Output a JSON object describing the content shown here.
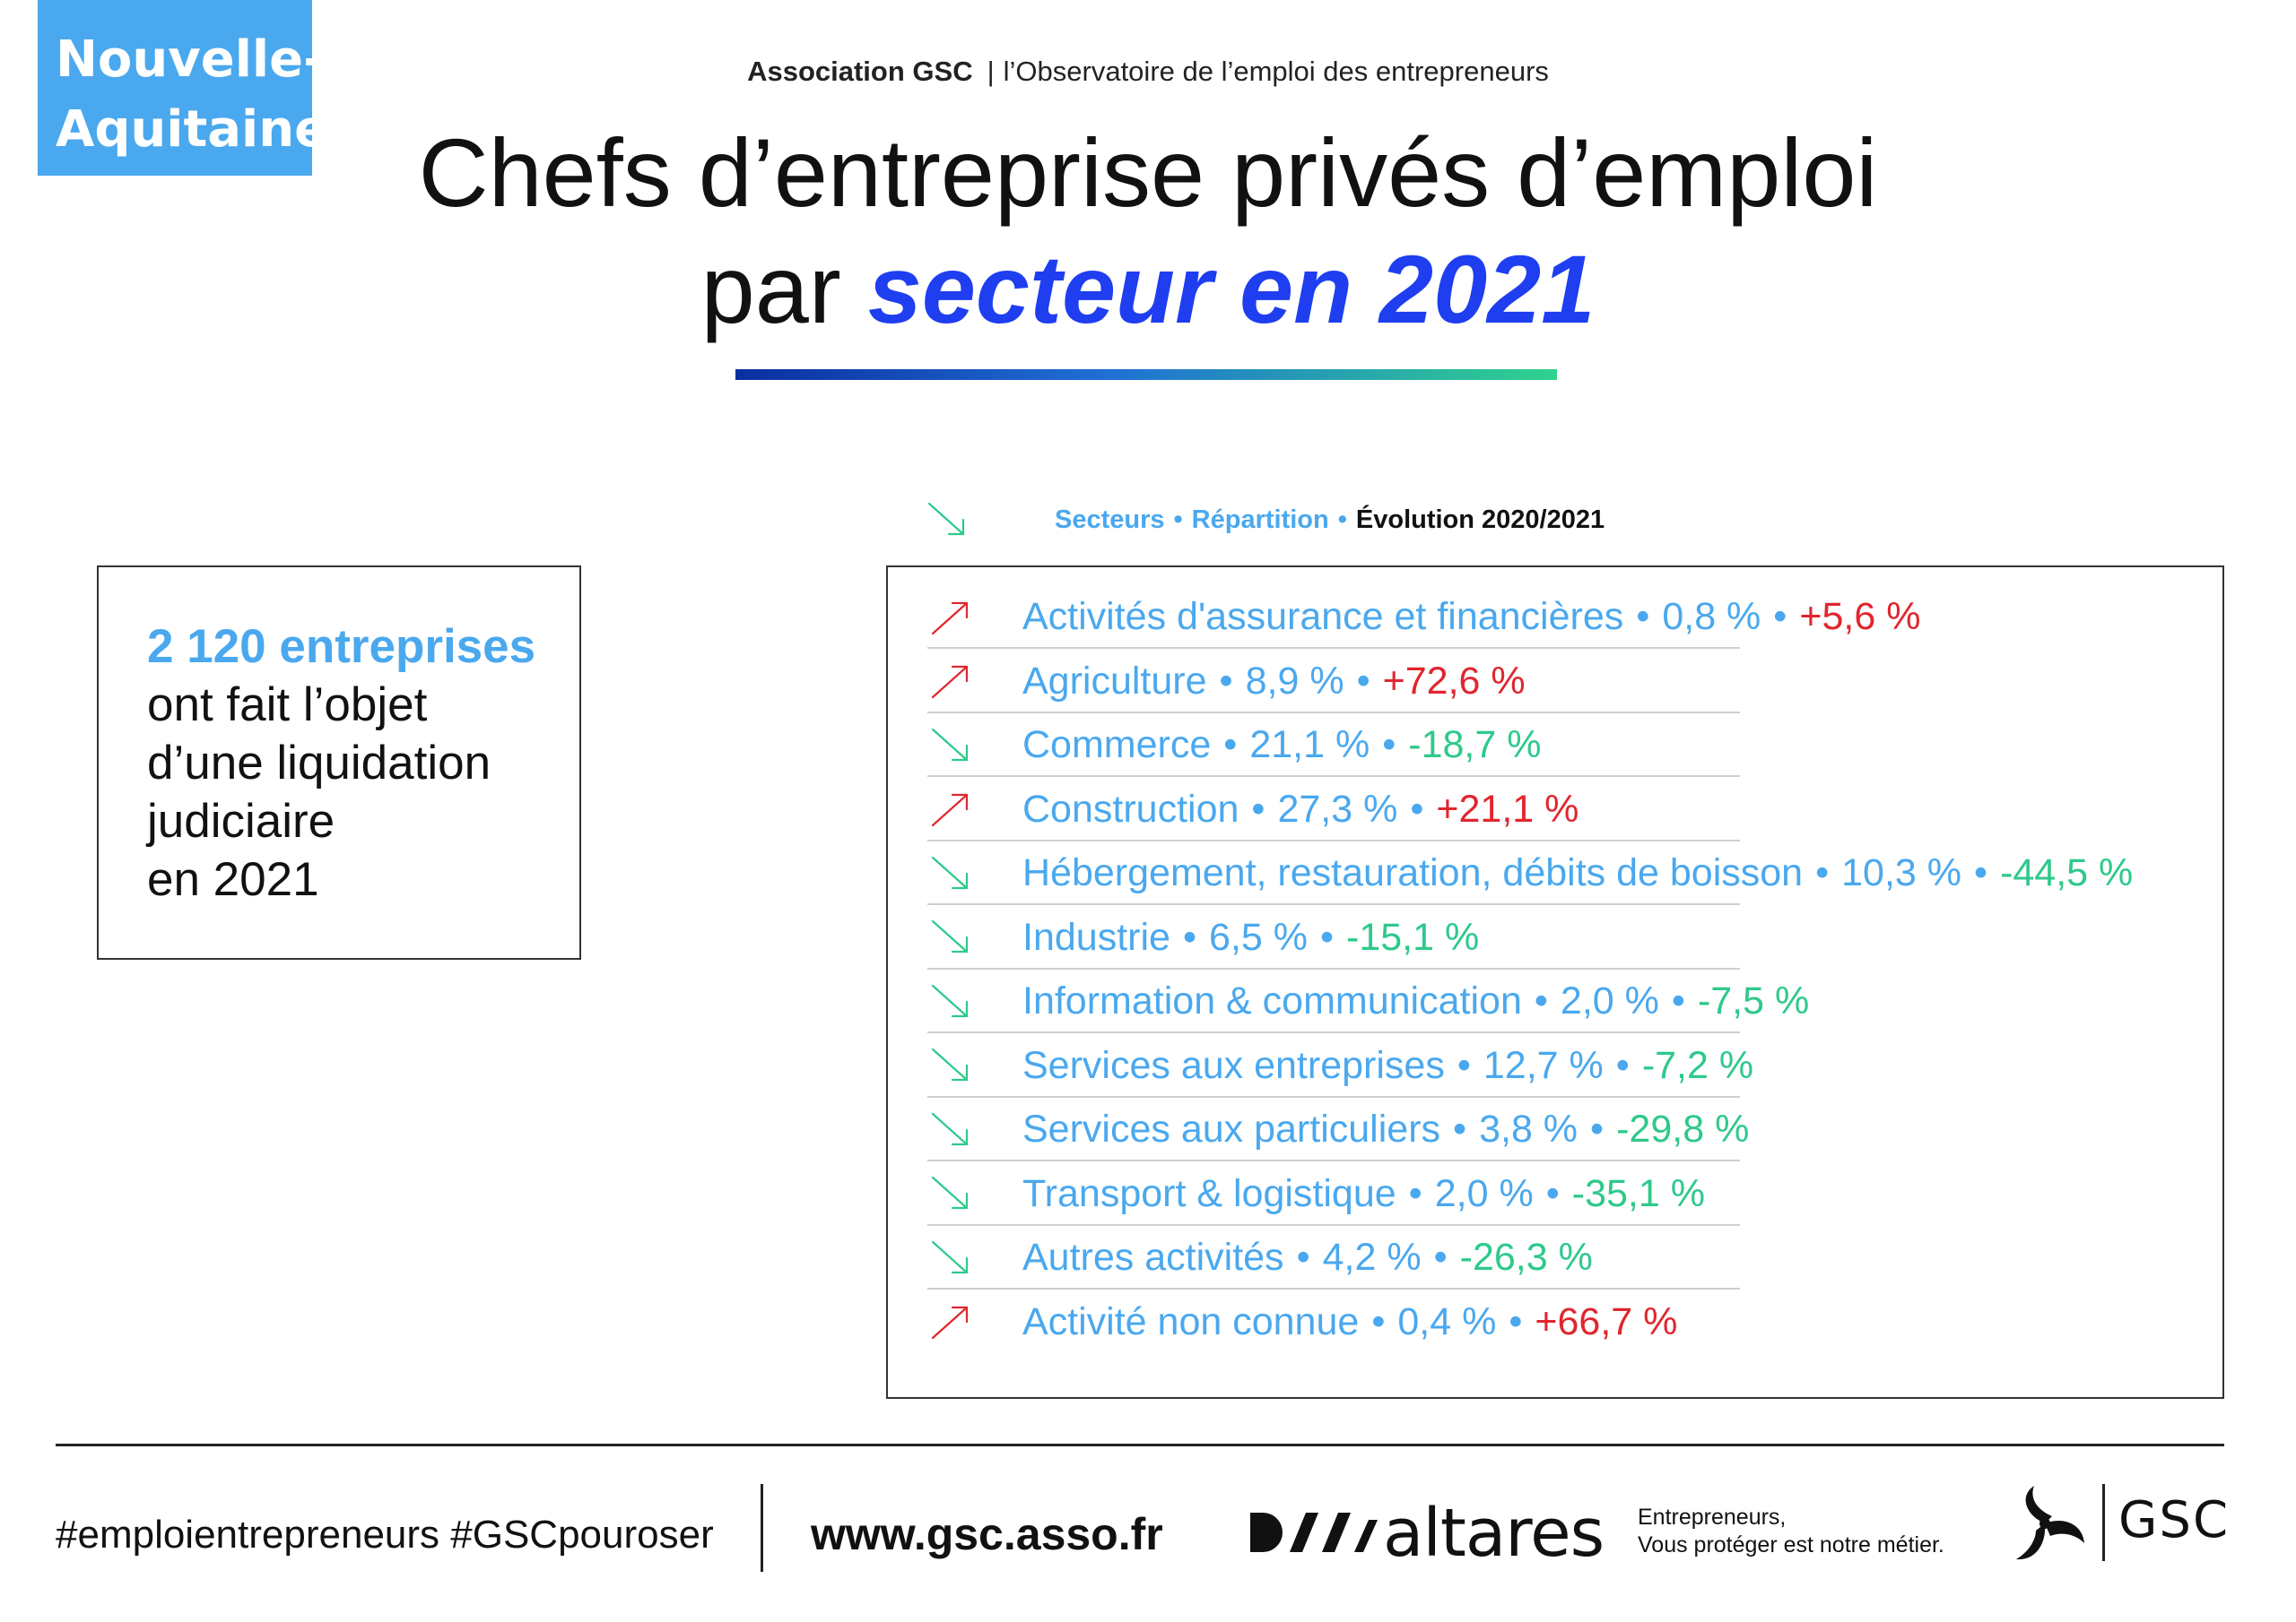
{
  "region_badge": {
    "line1": "Nouvelle-",
    "line2": "Aquitaine"
  },
  "header": {
    "org_name": "Association GSC",
    "separator": "|",
    "org_subtitle": "l’Observatoire de l’emploi des entrepreneurs",
    "title_line1": "Chefs d’entreprise privés d’emploi",
    "title_line2_prefix": "par",
    "title_line2_highlight": "secteur en 2021"
  },
  "colors": {
    "accent_blue": "#4aa8ee",
    "title_blue": "#1e3ef0",
    "negative_green": "#2ec98b",
    "positive_red": "#e0262e"
  },
  "legend": {
    "icon": "arrow-down-right-icon",
    "col1": "Secteurs",
    "col2": "Répartition",
    "col3": "Évolution 2020/2021",
    "bullet": "•"
  },
  "summary": {
    "highlight": "2 120 entreprises",
    "line2": "ont fait l’objet",
    "line3": "d’une liquidation",
    "line4": "judiciaire",
    "line5": "en 2021"
  },
  "sectors": [
    {
      "name": "Activités d'assurance et financières",
      "share": "0,8 %",
      "evolution": "+5,6 %",
      "trend": "up"
    },
    {
      "name": "Agriculture",
      "share": "8,9 %",
      "evolution": "+72,6 %",
      "trend": "up"
    },
    {
      "name": "Commerce",
      "share": "21,1 %",
      "evolution": "-18,7 %",
      "trend": "down"
    },
    {
      "name": "Construction",
      "share": "27,3 %",
      "evolution": "+21,1 %",
      "trend": "up"
    },
    {
      "name": "Hébergement, restauration, débits de boisson",
      "share": "10,3 %",
      "evolution": "-44,5 %",
      "trend": "down"
    },
    {
      "name": "Industrie",
      "share": "6,5 %",
      "evolution": "-15,1 %",
      "trend": "down"
    },
    {
      "name": "Information & communication",
      "share": "2,0 %",
      "evolution": "-7,5 %",
      "trend": "down"
    },
    {
      "name": "Services aux entreprises",
      "share": "12,7 %",
      "evolution": "-7,2 %",
      "trend": "down"
    },
    {
      "name": "Services aux particuliers",
      "share": "3,8 %",
      "evolution": "-29,8 %",
      "trend": "down"
    },
    {
      "name": "Transport & logistique",
      "share": "2,0 %",
      "evolution": "-35,1 %",
      "trend": "down"
    },
    {
      "name": "Autres activités",
      "share": "4,2 %",
      "evolution": "-26,3 %",
      "trend": "down"
    },
    {
      "name": "Activité non connue",
      "share": "0,4 %",
      "evolution": "+66,7 %",
      "trend": "up"
    }
  ],
  "footer": {
    "hashtags": "#emploientrepreneurs #GSCpouroser",
    "website": "www.gsc.asso.fr",
    "partner_logo": "altares",
    "tagline_line1": "Entrepreneurs,",
    "tagline_line2": "Vous protéger est notre métier.",
    "brand": "GSC"
  }
}
